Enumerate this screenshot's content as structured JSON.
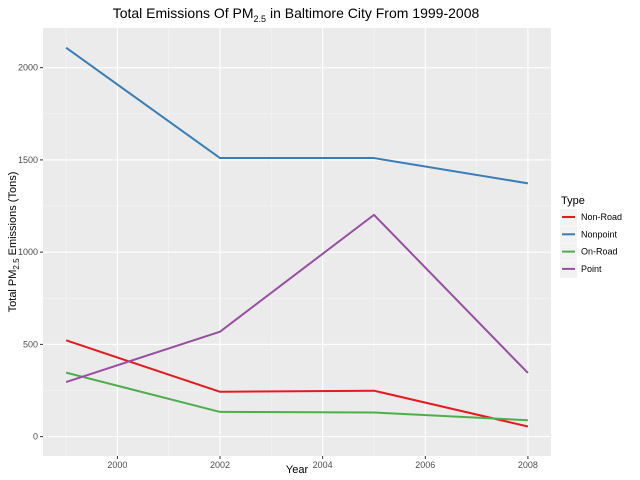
{
  "chart_data": {
    "type": "line",
    "title": {
      "prefix": "Total Emissions Of PM",
      "subscript": "2.5",
      "suffix": " in Baltimore City From 1999-2008"
    },
    "xlabel": "Year",
    "ylabel": {
      "prefix": "Total PM",
      "subscript": "2.5",
      "suffix": " Emissions (Tons)"
    },
    "x": [
      1999,
      2002,
      2005,
      2008
    ],
    "xlim": [
      1998.55,
      2008.45
    ],
    "ylim": [
      -105,
      2215
    ],
    "x_ticks": [
      {
        "value": 2000,
        "label": "2000"
      },
      {
        "value": 2002,
        "label": "2002"
      },
      {
        "value": 2004,
        "label": "2004"
      },
      {
        "value": 2006,
        "label": "2006"
      },
      {
        "value": 2008,
        "label": "2008"
      }
    ],
    "y_ticks": [
      {
        "value": 0,
        "label": "0"
      },
      {
        "value": 500,
        "label": "500"
      },
      {
        "value": 1000,
        "label": "1000"
      },
      {
        "value": 1500,
        "label": "1500"
      },
      {
        "value": 2000,
        "label": "2000"
      }
    ],
    "grid": true,
    "legend": {
      "title": "Type",
      "placement": "right"
    },
    "series": [
      {
        "name": "Non-Road",
        "color": "#e41a1c",
        "values": [
          522,
          243,
          249,
          55
        ]
      },
      {
        "name": "Nonpoint",
        "color": "#377eb8",
        "values": [
          2108,
          1510,
          1510,
          1373
        ]
      },
      {
        "name": "On-Road",
        "color": "#4daf4a",
        "values": [
          347,
          134,
          131,
          89
        ]
      },
      {
        "name": "Point",
        "color": "#984ea3",
        "values": [
          296,
          569,
          1202,
          345
        ]
      }
    ]
  }
}
